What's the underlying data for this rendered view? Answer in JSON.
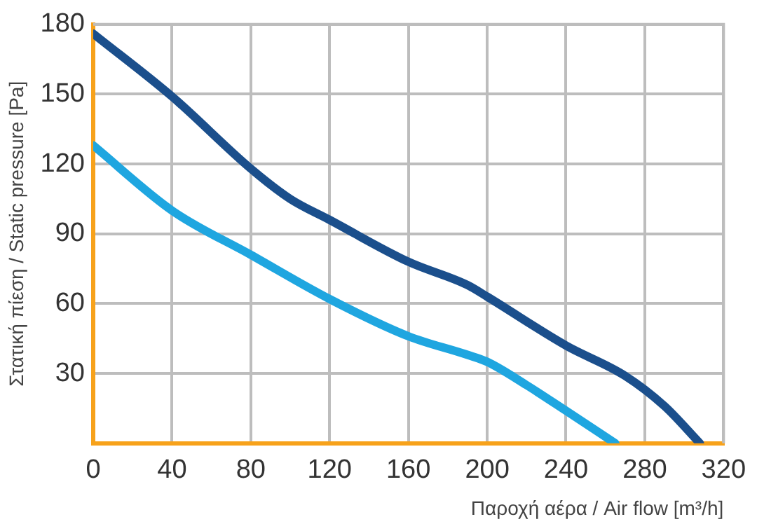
{
  "chart_data": {
    "type": "line",
    "xlabel": "Παροχή αέρα / Air flow [m³/h]",
    "ylabel": "Στατική πίεση / Static pressure [Pa]",
    "series": [
      {
        "color": "#1b4f8c",
        "x": [
          0,
          40,
          80,
          100,
          120,
          160,
          190,
          200,
          240,
          270,
          290,
          308
        ],
        "values": [
          176,
          149,
          118,
          105,
          96,
          78,
          68,
          63,
          42,
          29,
          16,
          0
        ]
      },
      {
        "color": "#1fa6e0",
        "x": [
          0,
          40,
          80,
          120,
          160,
          190,
          200,
          220,
          240,
          265
        ],
        "values": [
          128,
          100,
          81,
          62,
          46,
          38,
          35,
          25,
          14,
          0
        ]
      }
    ],
    "xlim": [
      0,
      320
    ],
    "xticks": [
      0,
      40,
      80,
      120,
      160,
      200,
      240,
      280,
      320
    ],
    "ylim": [
      0,
      180
    ],
    "yticks": [
      {
        "value": 0,
        "label": null
      },
      30,
      60,
      90,
      120,
      150,
      180
    ],
    "grid": true,
    "legend": false,
    "marker": "none",
    "line_style": "solid"
  }
}
